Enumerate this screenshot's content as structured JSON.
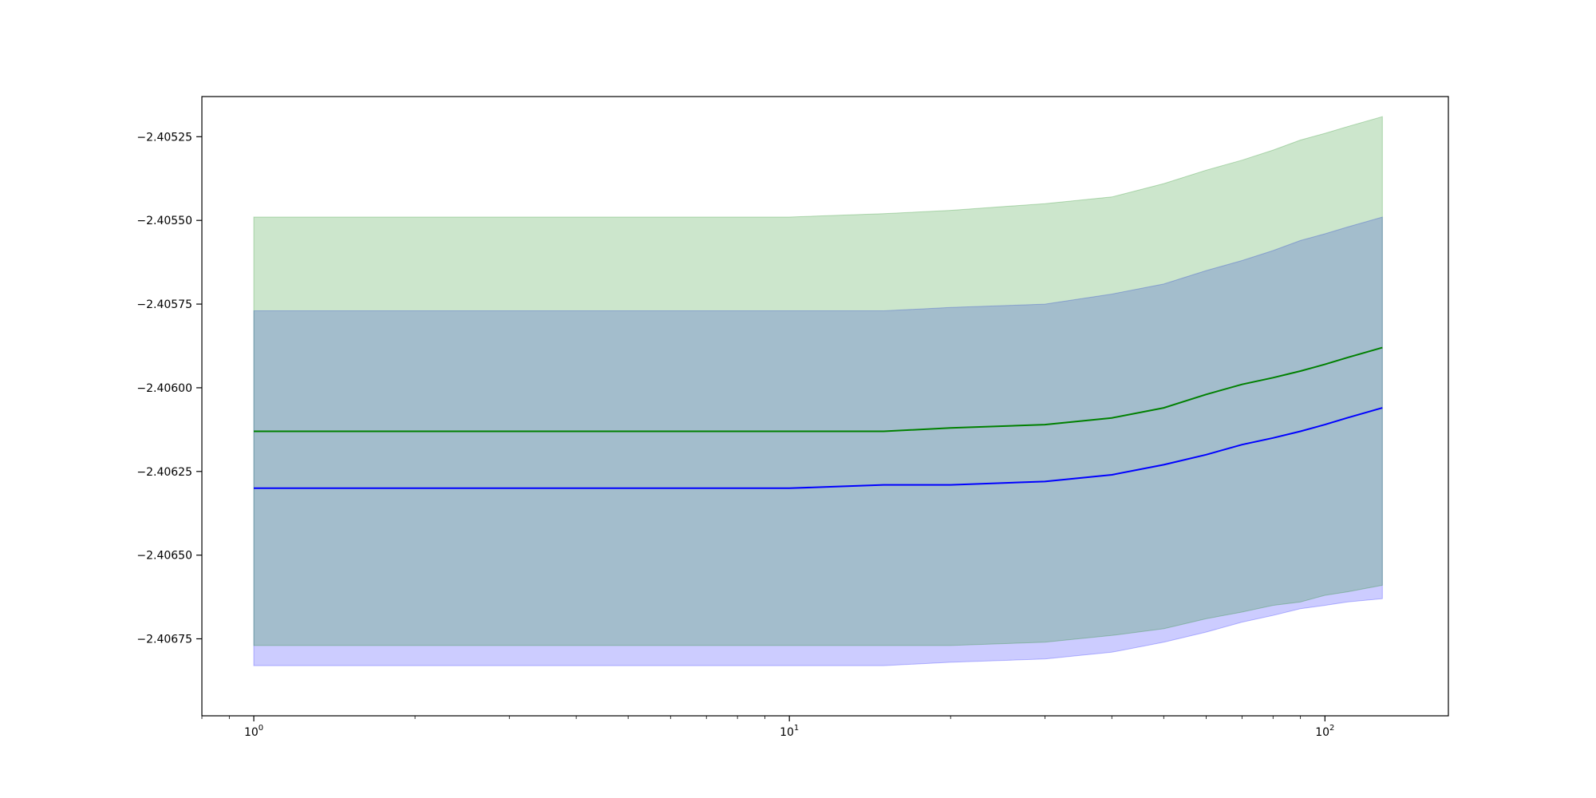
{
  "chart_data": {
    "type": "area",
    "x_scale": "log",
    "xlim": [
      0.8,
      170
    ],
    "ylim": [
      -2.40698,
      -2.40513
    ],
    "x_ticks": [
      {
        "value": 1,
        "base": "10",
        "exp": "0"
      },
      {
        "value": 10,
        "base": "10",
        "exp": "1"
      },
      {
        "value": 100,
        "base": "10",
        "exp": "2"
      }
    ],
    "y_ticks": [
      {
        "value": -2.40525,
        "label": "−2.40525"
      },
      {
        "value": -2.4055,
        "label": "−2.40550"
      },
      {
        "value": -2.40575,
        "label": "−2.40575"
      },
      {
        "value": -2.406,
        "label": "−2.40600"
      },
      {
        "value": -2.40625,
        "label": "−2.40625"
      },
      {
        "value": -2.4065,
        "label": "−2.40650"
      },
      {
        "value": -2.40675,
        "label": "−2.40675"
      }
    ],
    "grid": false,
    "x": [
      1,
      2,
      5,
      10,
      15,
      20,
      30,
      40,
      50,
      60,
      70,
      80,
      90,
      100,
      110,
      128
    ],
    "series": [
      {
        "color": "#0000ff",
        "band_color": "#0000ff",
        "band_opacity": 0.2,
        "mean": [
          -2.4063,
          -2.4063,
          -2.4063,
          -2.4063,
          -2.40629,
          -2.40629,
          -2.40628,
          -2.40626,
          -2.40623,
          -2.4062,
          -2.40617,
          -2.40615,
          -2.40613,
          -2.40611,
          -2.40609,
          -2.40606
        ],
        "lower": [
          -2.40683,
          -2.40683,
          -2.40683,
          -2.40683,
          -2.40683,
          -2.40682,
          -2.40681,
          -2.40679,
          -2.40676,
          -2.40673,
          -2.4067,
          -2.40668,
          -2.40666,
          -2.40665,
          -2.40664,
          -2.40663
        ],
        "upper": [
          -2.40577,
          -2.40577,
          -2.40577,
          -2.40577,
          -2.40577,
          -2.40576,
          -2.40575,
          -2.40572,
          -2.40569,
          -2.40565,
          -2.40562,
          -2.40559,
          -2.40556,
          -2.40554,
          -2.40552,
          -2.40549
        ]
      },
      {
        "color": "#008000",
        "band_color": "#008000",
        "band_opacity": 0.2,
        "mean": [
          -2.40613,
          -2.40613,
          -2.40613,
          -2.40613,
          -2.40613,
          -2.40612,
          -2.40611,
          -2.40609,
          -2.40606,
          -2.40602,
          -2.40599,
          -2.40597,
          -2.40595,
          -2.40593,
          -2.40591,
          -2.40588
        ],
        "lower": [
          -2.40677,
          -2.40677,
          -2.40677,
          -2.40677,
          -2.40677,
          -2.40677,
          -2.40676,
          -2.40674,
          -2.40672,
          -2.40669,
          -2.40667,
          -2.40665,
          -2.40664,
          -2.40662,
          -2.40661,
          -2.40659
        ],
        "upper": [
          -2.40549,
          -2.40549,
          -2.40549,
          -2.40549,
          -2.40548,
          -2.40547,
          -2.40545,
          -2.40543,
          -2.40539,
          -2.40535,
          -2.40532,
          -2.40529,
          -2.40526,
          -2.40524,
          -2.40522,
          -2.40519
        ]
      }
    ]
  }
}
